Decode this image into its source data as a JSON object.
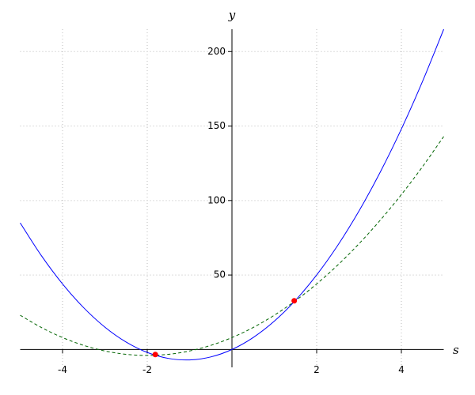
{
  "chart_data": {
    "type": "line",
    "x_label": "s",
    "y_label": "y",
    "x": [
      -5,
      -4.5,
      -4,
      -3.5,
      -3,
      -2.5,
      -2,
      -1.5,
      -1,
      -0.5,
      0,
      0.5,
      1,
      1.5,
      2,
      2.5,
      3,
      3.5,
      4,
      4.5,
      5
    ],
    "series": [
      {
        "color": "#0000ff",
        "dash": false,
        "values": [
          85,
          63,
          44,
          28,
          15,
          5,
          -2,
          -6,
          -7,
          -5,
          0,
          8,
          19,
          33,
          50,
          70,
          93,
          119,
          148,
          180,
          215
        ]
      },
      {
        "color": "#006400",
        "dash": true,
        "values": [
          23,
          14.75,
          8,
          2.75,
          -1,
          -3.25,
          -4,
          -3.25,
          -1,
          2.75,
          8,
          14.75,
          23,
          32.75,
          44,
          56.75,
          71,
          86.75,
          104,
          122.75,
          143
        ]
      }
    ],
    "points": {
      "color": "#ff0000",
      "x": [
        -1.81,
        1.47
      ],
      "y": [
        -3.4,
        32.7
      ]
    },
    "xlim": [
      -5,
      5
    ],
    "ylim": [
      -12,
      215
    ],
    "xticks": [
      -4,
      -2,
      2,
      4
    ],
    "yticks": [
      50,
      100,
      150,
      200
    ],
    "grid": true
  }
}
